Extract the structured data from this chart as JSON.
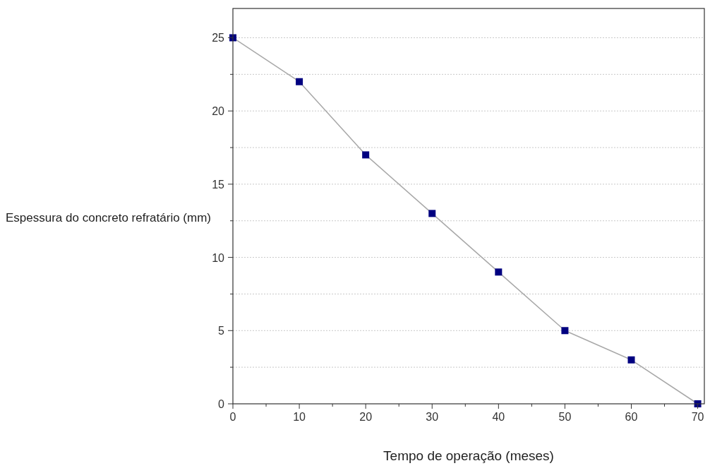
{
  "chart_data": {
    "type": "line",
    "xlabel": "Tempo de operação (meses)",
    "ylabel": "Espessura do concreto refratário (mm)",
    "x": [
      0,
      10,
      20,
      30,
      40,
      50,
      60,
      70
    ],
    "series": [
      {
        "color": "#000080",
        "values": [
          25,
          22,
          17,
          13,
          9,
          5,
          3,
          0
        ]
      }
    ],
    "xlim": [
      0,
      71
    ],
    "ylim": [
      0,
      27
    ],
    "xticks": [
      0,
      {
        "value": 5,
        "label": null
      },
      10,
      {
        "value": 15,
        "label": null
      },
      20,
      {
        "value": 25,
        "label": null
      },
      30,
      {
        "value": 35,
        "label": null
      },
      40,
      {
        "value": 45,
        "label": null
      },
      50,
      {
        "value": 55,
        "label": null
      },
      60,
      {
        "value": 65,
        "label": null
      },
      70
    ],
    "yticks": [
      0,
      {
        "value": 2.5,
        "label": null
      },
      5,
      {
        "value": 7.5,
        "label": null
      },
      10,
      {
        "value": 12.5,
        "label": null
      },
      15,
      {
        "value": 17.5,
        "label": null
      },
      20,
      {
        "value": 22.5,
        "label": null
      },
      25
    ],
    "grid": "y",
    "marker": "square",
    "line_style": "solid"
  }
}
